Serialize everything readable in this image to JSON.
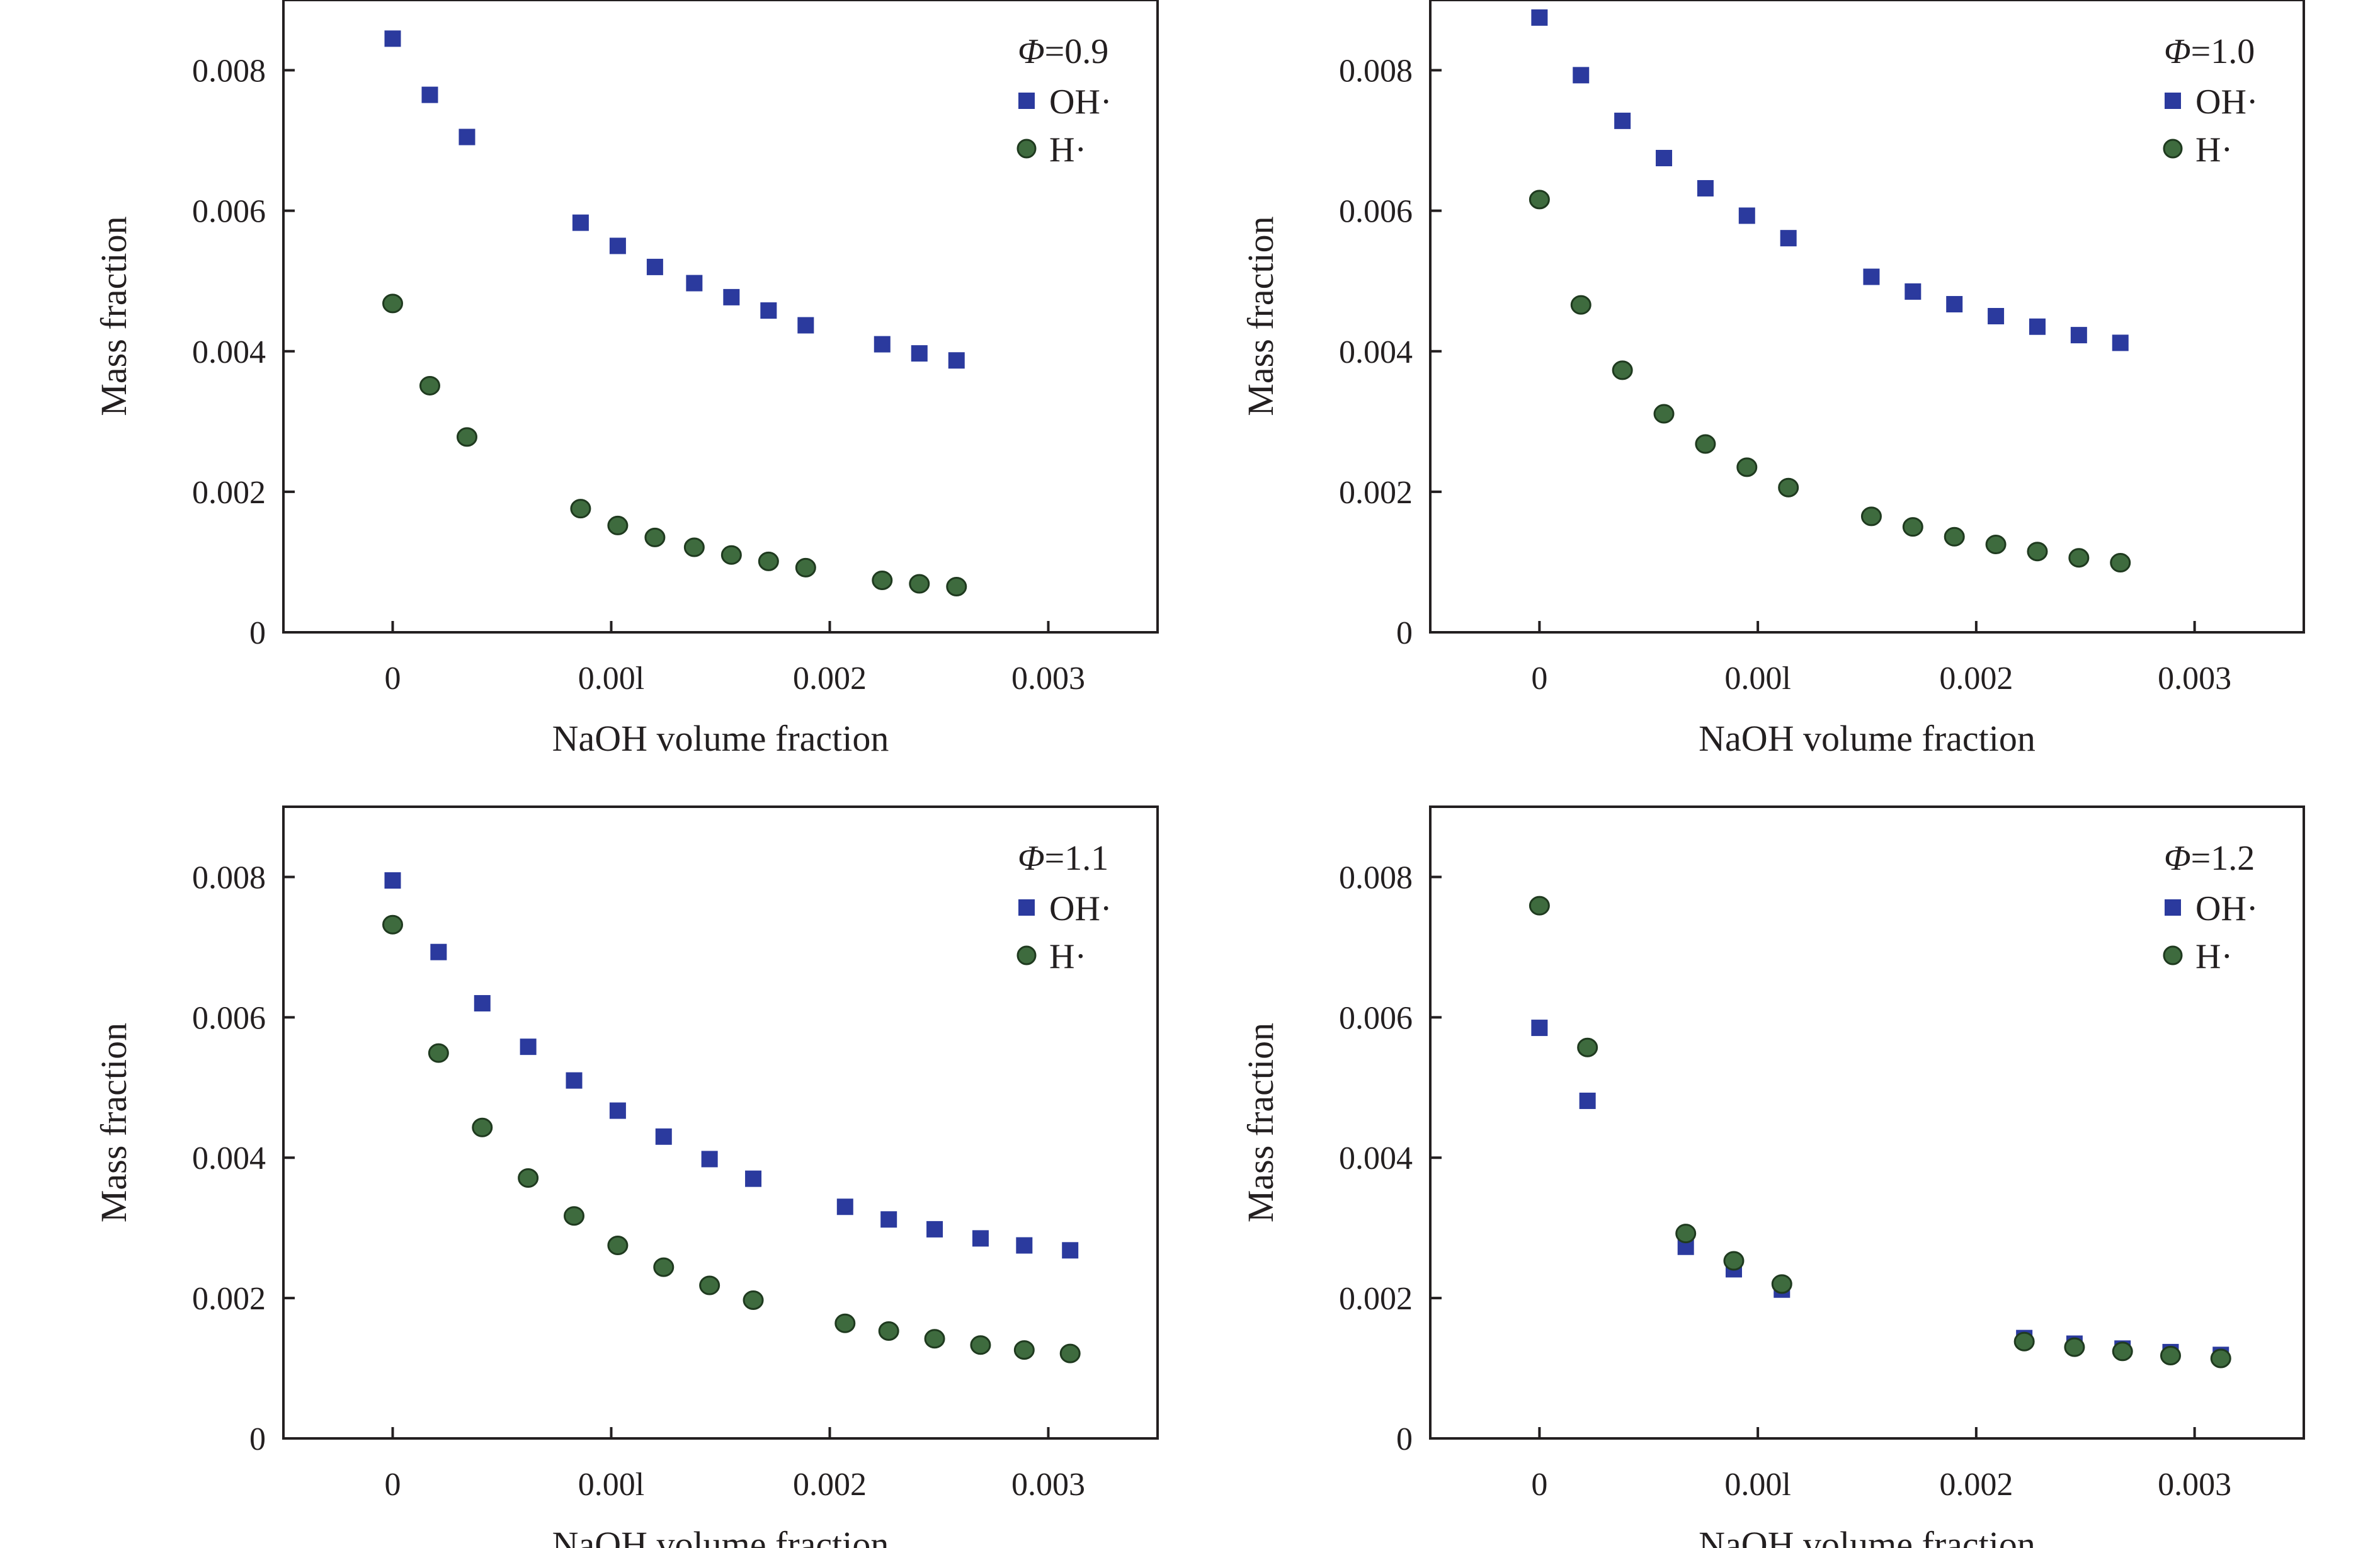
{
  "chart_data": [
    {
      "type": "scatter",
      "title": "",
      "annotation": {
        "symbol": "Φ",
        "text": "=0.9"
      },
      "xlabel": "NaOH volume fraction",
      "ylabel": "Mass fraction",
      "xlim": [
        -0.0005,
        0.0035
      ],
      "ylim": [
        0,
        0.009
      ],
      "xticks": [
        0,
        0.001,
        0.002,
        0.003
      ],
      "xtick_labels": [
        "0",
        "0.00l",
        "0.002",
        "0.003"
      ],
      "yticks": [
        0,
        0.002,
        0.004,
        0.006,
        0.008
      ],
      "ytick_labels": [
        "0",
        "0.002",
        "0.004",
        "0.006",
        "0.008"
      ],
      "legend_position": "top-right",
      "series": [
        {
          "name": "OH·",
          "marker": "square",
          "color": "#2b3a9e",
          "x": [
            0,
            0.00017,
            0.00034,
            0.00086,
            0.00103,
            0.0012,
            0.00138,
            0.00155,
            0.00172,
            0.00189,
            0.00224,
            0.00241,
            0.00258
          ],
          "y": [
            0.00845,
            0.00765,
            0.00705,
            0.00583,
            0.0055,
            0.0052,
            0.00497,
            0.00477,
            0.00458,
            0.00437,
            0.0041,
            0.00397,
            0.00387
          ]
        },
        {
          "name": "H·",
          "marker": "circle",
          "color": "#3e6b3e",
          "x": [
            0,
            0.00017,
            0.00034,
            0.00086,
            0.00103,
            0.0012,
            0.00138,
            0.00155,
            0.00172,
            0.00189,
            0.00224,
            0.00241,
            0.00258
          ],
          "y": [
            0.00468,
            0.00351,
            0.00278,
            0.00176,
            0.00152,
            0.00135,
            0.00121,
            0.0011,
            0.00101,
            0.00092,
            0.00074,
            0.00069,
            0.00065
          ]
        }
      ]
    },
    {
      "type": "scatter",
      "title": "",
      "annotation": {
        "symbol": "Φ",
        "text": "=1.0"
      },
      "xlabel": "NaOH volume fraction",
      "ylabel": "Mass fraction",
      "xlim": [
        -0.0005,
        0.0035
      ],
      "ylim": [
        0,
        0.009
      ],
      "xticks": [
        0,
        0.001,
        0.002,
        0.003
      ],
      "xtick_labels": [
        "0",
        "0.00l",
        "0.002",
        "0.003"
      ],
      "yticks": [
        0,
        0.002,
        0.004,
        0.006,
        0.008
      ],
      "ytick_labels": [
        "0",
        "0.002",
        "0.004",
        "0.006",
        "0.008"
      ],
      "legend_position": "top-right",
      "series": [
        {
          "name": "OH·",
          "marker": "square",
          "color": "#2b3a9e",
          "x": [
            0,
            0.00019,
            0.00038,
            0.00057,
            0.00076,
            0.00095,
            0.00114,
            0.00152,
            0.00171,
            0.0019,
            0.00209,
            0.00228,
            0.00247,
            0.00266
          ],
          "y": [
            0.00875,
            0.00793,
            0.00728,
            0.00675,
            0.00632,
            0.00593,
            0.00561,
            0.00506,
            0.00485,
            0.00467,
            0.0045,
            0.00435,
            0.00423,
            0.00412
          ]
        },
        {
          "name": "H·",
          "marker": "circle",
          "color": "#3e6b3e",
          "x": [
            0,
            0.00019,
            0.00038,
            0.00057,
            0.00076,
            0.00095,
            0.00114,
            0.00152,
            0.00171,
            0.0019,
            0.00209,
            0.00228,
            0.00247,
            0.00266
          ],
          "y": [
            0.00616,
            0.00466,
            0.00373,
            0.00311,
            0.00268,
            0.00235,
            0.00206,
            0.00165,
            0.0015,
            0.00136,
            0.00125,
            0.00115,
            0.00106,
            0.00099
          ]
        }
      ]
    },
    {
      "type": "scatter",
      "title": "",
      "annotation": {
        "symbol": "Φ",
        "text": "=1.1"
      },
      "xlabel": "NaOH volume fraction",
      "ylabel": "Mass fraction",
      "xlim": [
        -0.0005,
        0.0035
      ],
      "ylim": [
        0,
        0.009
      ],
      "xticks": [
        0,
        0.001,
        0.002,
        0.003
      ],
      "xtick_labels": [
        "0",
        "0.00l",
        "0.002",
        "0.003"
      ],
      "yticks": [
        0,
        0.002,
        0.004,
        0.006,
        0.008
      ],
      "ytick_labels": [
        "0",
        "0.002",
        "0.004",
        "0.006",
        "0.008"
      ],
      "legend_position": "top-right",
      "series": [
        {
          "name": "OH·",
          "marker": "square",
          "color": "#2b3a9e",
          "x": [
            0,
            0.00021,
            0.00041,
            0.00062,
            0.00083,
            0.00103,
            0.00124,
            0.00145,
            0.00165,
            0.00207,
            0.00227,
            0.00248,
            0.00269,
            0.00289,
            0.0031
          ],
          "y": [
            0.00795,
            0.00693,
            0.0062,
            0.00558,
            0.0051,
            0.00467,
            0.0043,
            0.00398,
            0.0037,
            0.0033,
            0.00312,
            0.00298,
            0.00285,
            0.00275,
            0.00268
          ]
        },
        {
          "name": "H·",
          "marker": "circle",
          "color": "#3e6b3e",
          "x": [
            0,
            0.00021,
            0.00041,
            0.00062,
            0.00083,
            0.00103,
            0.00124,
            0.00145,
            0.00165,
            0.00207,
            0.00227,
            0.00248,
            0.00269,
            0.00289,
            0.0031
          ],
          "y": [
            0.00732,
            0.00549,
            0.00443,
            0.00371,
            0.00317,
            0.00275,
            0.00244,
            0.00218,
            0.00197,
            0.00164,
            0.00153,
            0.00142,
            0.00133,
            0.00126,
            0.00121
          ]
        }
      ]
    },
    {
      "type": "scatter",
      "title": "",
      "annotation": {
        "symbol": "Φ",
        "text": "=1.2"
      },
      "xlabel": "NaOH volume fraction",
      "ylabel": "Mass fraction",
      "xlim": [
        -0.0005,
        0.0035
      ],
      "ylim": [
        0,
        0.009
      ],
      "xticks": [
        0,
        0.001,
        0.002,
        0.003
      ],
      "xtick_labels": [
        "0",
        "0.00l",
        "0.002",
        "0.003"
      ],
      "yticks": [
        0,
        0.002,
        0.004,
        0.006,
        0.008
      ],
      "ytick_labels": [
        "0",
        "0.002",
        "0.004",
        "0.006",
        "0.008"
      ],
      "legend_position": "top-right",
      "series": [
        {
          "name": "OH·",
          "marker": "square",
          "color": "#2b3a9e",
          "x": [
            0,
            0.00022,
            0.00067,
            0.00089,
            0.00111,
            0.00222,
            0.00245,
            0.00267,
            0.00289,
            0.00312
          ],
          "y": [
            0.00585,
            0.00481,
            0.00273,
            0.00241,
            0.00212,
            0.00143,
            0.00135,
            0.00128,
            0.00123,
            0.00119
          ]
        },
        {
          "name": "H·",
          "marker": "circle",
          "color": "#3e6b3e",
          "x": [
            0,
            0.00022,
            0.00067,
            0.00089,
            0.00111,
            0.00222,
            0.00245,
            0.00267,
            0.00289,
            0.00312
          ],
          "y": [
            0.00759,
            0.00557,
            0.00292,
            0.00253,
            0.0022,
            0.00138,
            0.0013,
            0.00124,
            0.00118,
            0.00114
          ]
        }
      ]
    }
  ]
}
